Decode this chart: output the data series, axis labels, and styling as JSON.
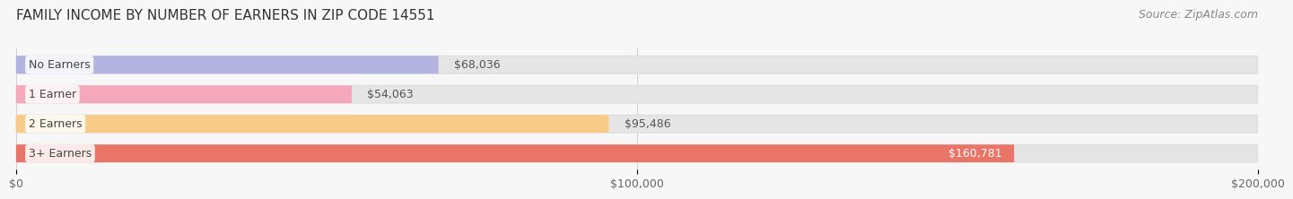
{
  "title": "FAMILY INCOME BY NUMBER OF EARNERS IN ZIP CODE 14551",
  "source": "Source: ZipAtlas.com",
  "categories": [
    "No Earners",
    "1 Earner",
    "2 Earners",
    "3+ Earners"
  ],
  "values": [
    68036,
    54063,
    95486,
    160781
  ],
  "bar_colors": [
    "#b3b3e0",
    "#f5a8bc",
    "#f8cc88",
    "#e87568"
  ],
  "value_labels": [
    "$68,036",
    "$54,063",
    "$95,486",
    "$160,781"
  ],
  "value_label_colors": [
    "#555555",
    "#555555",
    "#555555",
    "#ffffff"
  ],
  "xlim": [
    0,
    200000
  ],
  "xticks": [
    0,
    100000,
    200000
  ],
  "xtick_labels": [
    "$0",
    "$100,000",
    "$200,000"
  ],
  "background_color": "#f7f7f7",
  "bar_bg_color": "#e5e5e5",
  "title_fontsize": 11,
  "source_fontsize": 9,
  "cat_fontsize": 9,
  "value_fontsize": 9,
  "tick_fontsize": 9
}
